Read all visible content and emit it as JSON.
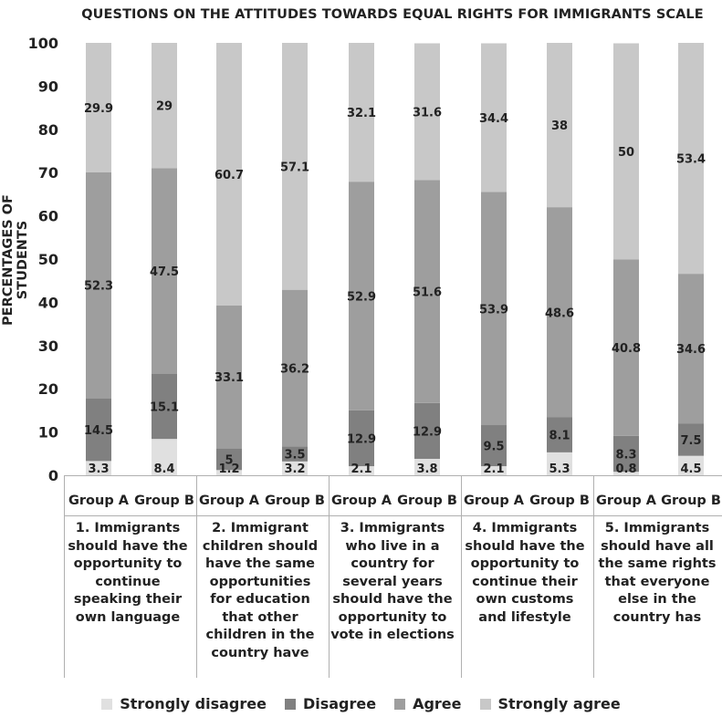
{
  "chart_data": {
    "type": "bar",
    "stacked": true,
    "title": "QUESTIONS ON THE ATTITUDES TOWARDS EQUAL RIGHTS FOR IMMIGRANTS SCALE",
    "ylabel": "PERCENTAGES OF STUDENTS",
    "ylim": [
      0,
      100
    ],
    "yticks": [
      0,
      10,
      20,
      30,
      40,
      50,
      60,
      70,
      80,
      90,
      100
    ],
    "grid": false,
    "legend_position": "bottom",
    "groups": [
      "Group A",
      "Group B"
    ],
    "questions": [
      "1. Immigrants should have the opportunity to continue speaking their own language",
      "2. Immigrant children should have the same opportunities for education that other children in the country have",
      "3. Immigrants who live in a country for several years should have the opportunity to vote in elections",
      "4. Immigrants should have the opportunity to continue their own customs and lifestyle",
      "5. Immigrants should have all the same rights that everyone else in the country has"
    ],
    "series": [
      {
        "name": "Strongly disagree",
        "color": "#e0e0e0",
        "values": [
          3.3,
          8.4,
          1.2,
          3.2,
          2.1,
          3.8,
          2.1,
          5.3,
          0.8,
          4.5
        ]
      },
      {
        "name": "Disagree",
        "color": "#808080",
        "values": [
          14.5,
          15.1,
          5,
          3.5,
          12.9,
          12.9,
          9.5,
          8.1,
          8.3,
          7.5
        ]
      },
      {
        "name": "Agree",
        "color": "#9e9e9e",
        "values": [
          52.3,
          47.5,
          33.1,
          36.2,
          52.9,
          51.6,
          53.9,
          48.6,
          40.8,
          34.6
        ]
      },
      {
        "name": "Strongly agree",
        "color": "#c8c8c8",
        "values": [
          29.9,
          29,
          60.7,
          57.1,
          32.1,
          31.6,
          34.4,
          38,
          50,
          53.4
        ]
      }
    ]
  }
}
